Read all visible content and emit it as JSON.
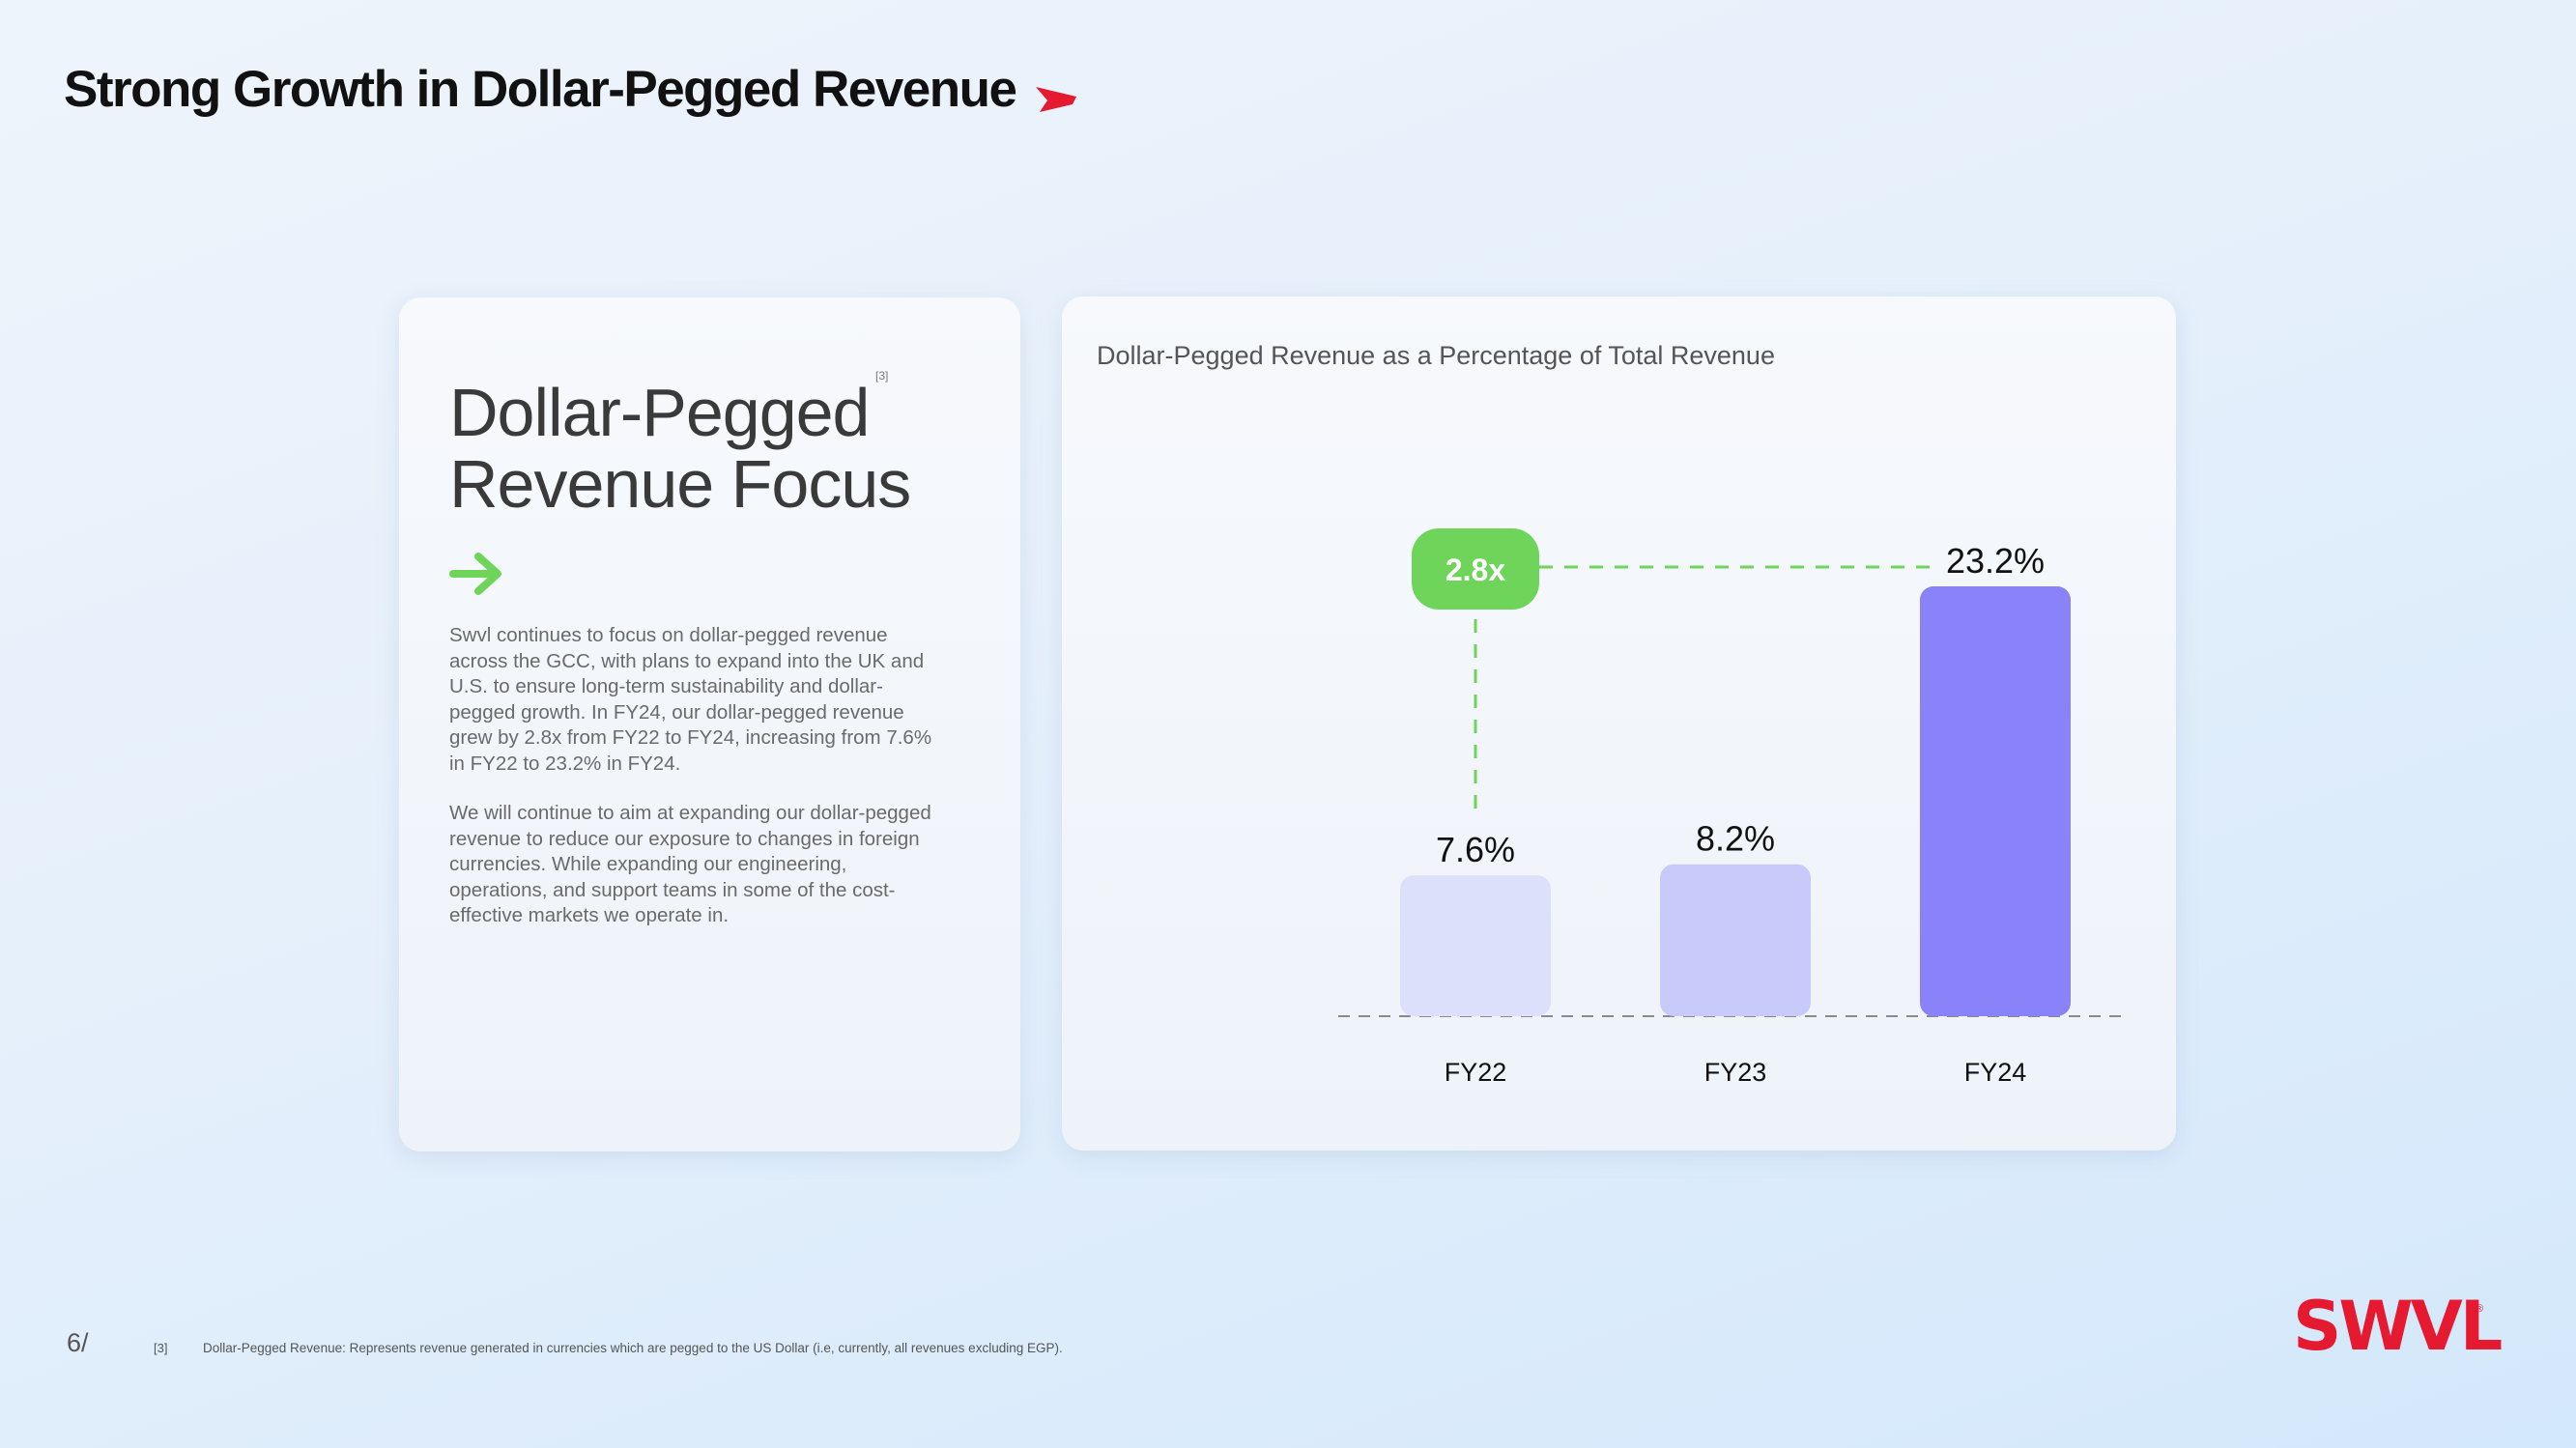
{
  "page": {
    "title": "Strong Growth in Dollar-Pegged Revenue",
    "page_number": "6/",
    "footnote_number": "[3]",
    "footnote_text": "Dollar-Pegged Revenue: Represents revenue generated in currencies which are pegged to the US Dollar (i.e, currently, all revenues excluding EGP).",
    "brand": "SWVL",
    "brand_mark": "®"
  },
  "left_panel": {
    "heading_line1": "Dollar-Pegged",
    "heading_line2": "Revenue Focus",
    "footnote_ref": "[3]",
    "paragraph1": "Swvl continues to focus on dollar-pegged revenue across the GCC, with plans to expand into the UK and U.S. to ensure long-term sustainability and dollar-pegged growth. In FY24, our dollar-pegged revenue grew by 2.8x from FY22 to FY24, increasing from 7.6% in FY22 to 23.2% in FY24.",
    "paragraph2": "We will continue to aim at expanding our dollar-pegged revenue to reduce our exposure to changes in foreign currencies. While expanding our engineering, operations, and support teams in some of the cost-effective markets we operate in."
  },
  "colors": {
    "accent_red": "#e5192f",
    "accent_green": "#6fd45a",
    "bar_fy22": "#dde0fa",
    "bar_fy23": "#c8caf9",
    "bar_fy24": "#8a82f8"
  },
  "chart_data": {
    "type": "bar",
    "title": "Dollar-Pegged Revenue as a Percentage of Total Revenue",
    "categories": [
      "FY22",
      "FY23",
      "FY24"
    ],
    "values": [
      7.6,
      8.2,
      23.2
    ],
    "value_labels": [
      "7.6%",
      "8.2%",
      "23.2%"
    ],
    "unit": "%",
    "annotation": "2.8x",
    "ylim": [
      0,
      23.2
    ],
    "grid": false,
    "legend": "none"
  }
}
